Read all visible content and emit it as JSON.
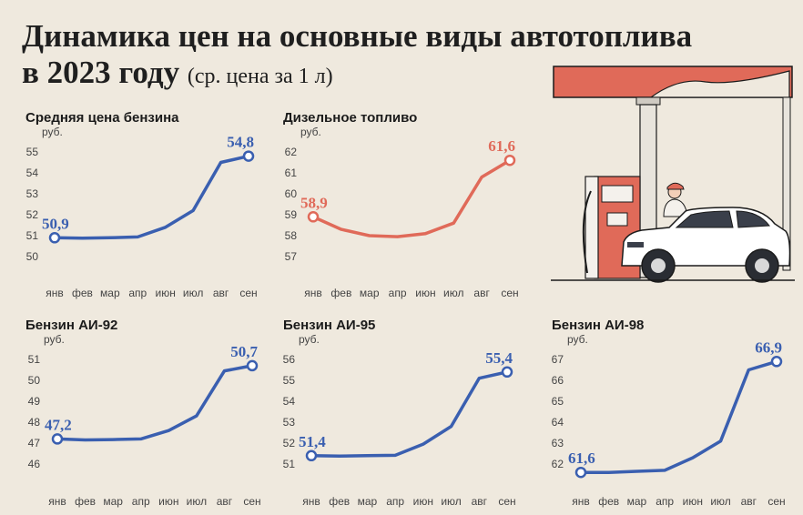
{
  "header": {
    "title": "Динамика цен на основные виды автотоплива",
    "title_line2": "в 2023 году",
    "subtitle": "(ср. цена за 1 л)"
  },
  "colors": {
    "blue": "#3a5fb0",
    "red": "#e06a59",
    "background": "#efe9de",
    "axis_text": "#444444"
  },
  "illustration": {
    "description_icon": "gas-station-with-car-icon"
  },
  "chart_data": [
    {
      "type": "line",
      "title": "Средняя цена бензина",
      "ylabel": "руб.",
      "categories": [
        "янв",
        "фев",
        "мар",
        "апр",
        "июн",
        "июл",
        "авг",
        "сен"
      ],
      "values": [
        50.9,
        50.88,
        50.9,
        50.94,
        51.4,
        52.2,
        54.5,
        54.8
      ],
      "yticks": [
        50,
        51,
        52,
        53,
        54,
        55
      ],
      "ylim": [
        50,
        55
      ],
      "color": "blue",
      "labels": {
        "first": "50,9",
        "last": "54,8"
      }
    },
    {
      "type": "line",
      "title": "Дизельное топливо",
      "ylabel": "руб.",
      "categories": [
        "янв",
        "фев",
        "мар",
        "апр",
        "июн",
        "июл",
        "авг",
        "сен"
      ],
      "values": [
        58.9,
        58.3,
        58.0,
        57.95,
        58.1,
        58.6,
        60.8,
        61.6
      ],
      "yticks": [
        57,
        58,
        59,
        60,
        61,
        62
      ],
      "ylim": [
        57,
        62
      ],
      "color": "red",
      "labels": {
        "first": "58,9",
        "last": "61,6"
      }
    },
    {
      "type": "line",
      "title": "Бензин АИ-92",
      "ylabel": "руб.",
      "categories": [
        "янв",
        "фев",
        "мар",
        "апр",
        "июн",
        "июл",
        "авг",
        "сен"
      ],
      "values": [
        47.2,
        47.15,
        47.17,
        47.2,
        47.6,
        48.3,
        50.45,
        50.7
      ],
      "yticks": [
        46,
        47,
        48,
        49,
        50,
        51
      ],
      "ylim": [
        46,
        51
      ],
      "color": "blue",
      "labels": {
        "first": "47,2",
        "last": "50,7"
      }
    },
    {
      "type": "line",
      "title": "Бензин АИ-95",
      "ylabel": "руб.",
      "categories": [
        "янв",
        "фев",
        "мар",
        "апр",
        "июн",
        "июл",
        "авг",
        "сен"
      ],
      "values": [
        51.4,
        51.38,
        51.4,
        51.42,
        51.95,
        52.8,
        55.1,
        55.4
      ],
      "yticks": [
        51,
        52,
        53,
        54,
        55,
        56
      ],
      "ylim": [
        51,
        56
      ],
      "color": "blue",
      "labels": {
        "first": "51,4",
        "last": "55,4"
      }
    },
    {
      "type": "line",
      "title": "Бензин АИ-98",
      "ylabel": "руб.",
      "categories": [
        "янв",
        "фев",
        "мар",
        "апр",
        "июн",
        "июл",
        "авг",
        "сен"
      ],
      "values": [
        61.6,
        61.6,
        61.65,
        61.7,
        62.3,
        63.1,
        66.5,
        66.9
      ],
      "yticks": [
        62,
        63,
        64,
        65,
        66,
        67
      ],
      "ylim": [
        62,
        67
      ],
      "color": "blue",
      "labels": {
        "first": "61,6",
        "last": "66,9"
      }
    }
  ]
}
